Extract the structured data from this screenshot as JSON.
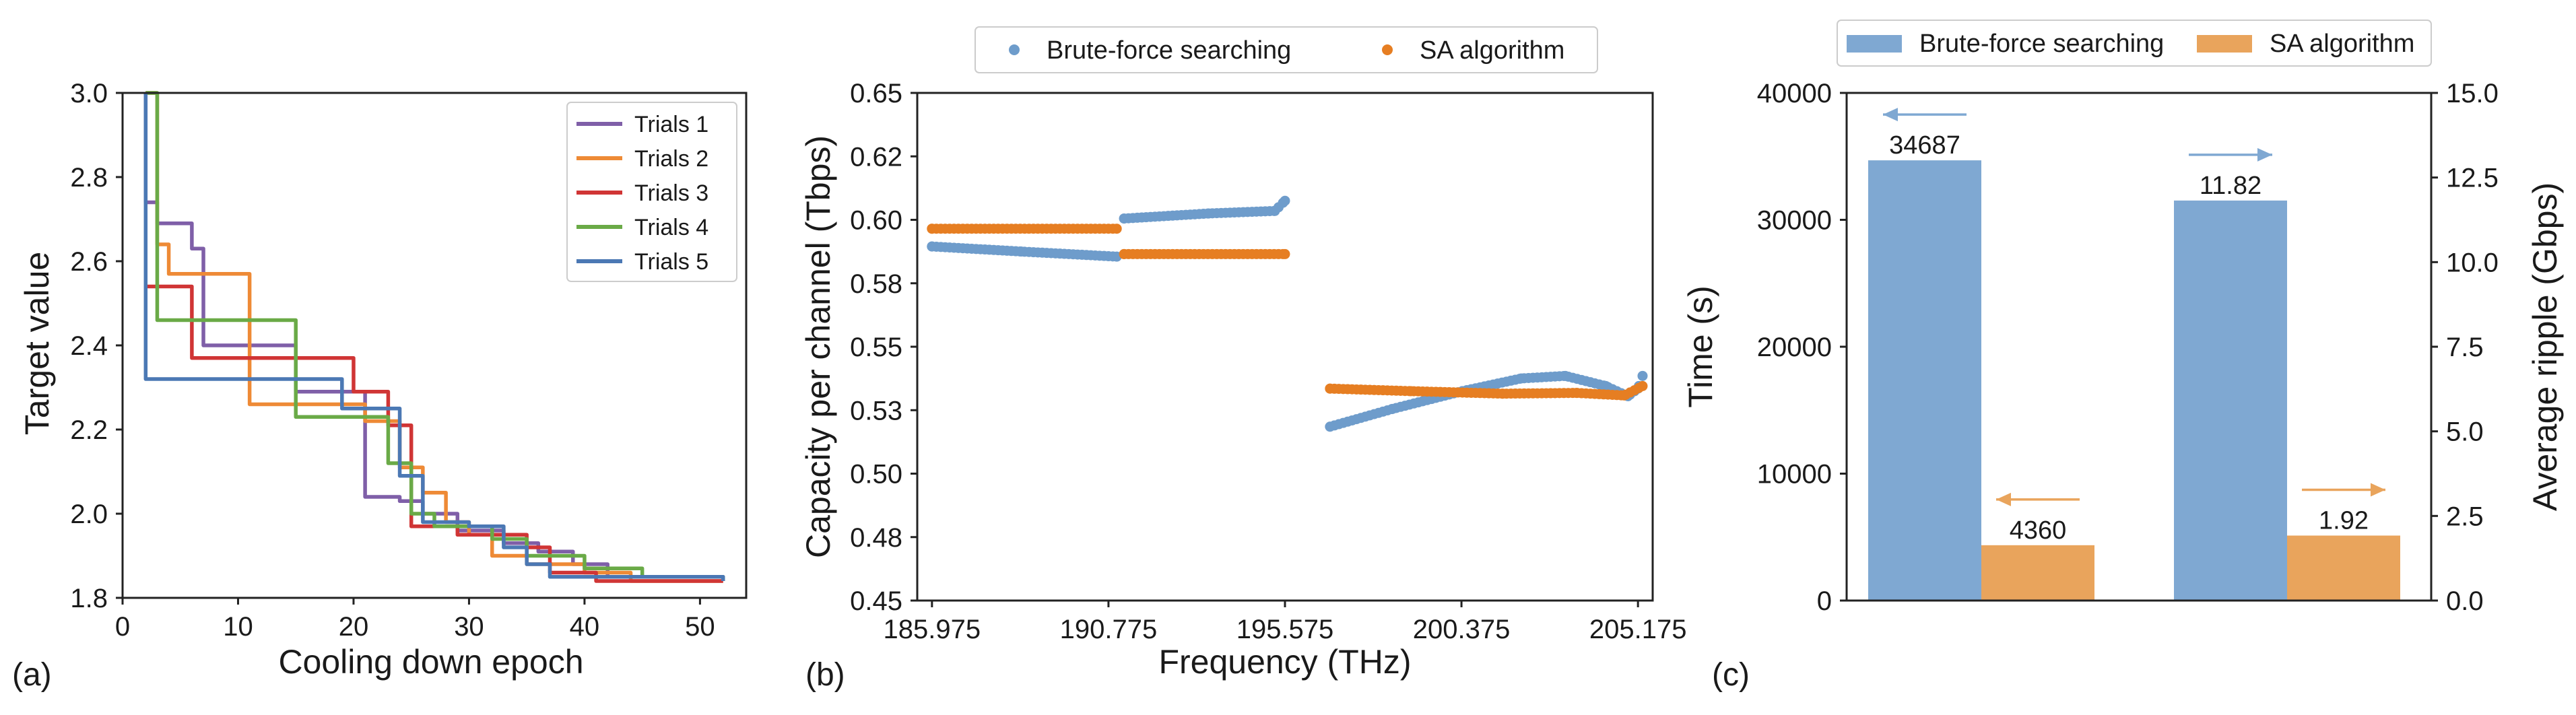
{
  "chart_data": [
    {
      "type": "line",
      "panel_label": "(a)",
      "xlabel": "Cooling down epoch",
      "ylabel": "Target value",
      "xlim": [
        0,
        54
      ],
      "ylim": [
        1.8,
        3.0
      ],
      "xticks": [
        0,
        10,
        20,
        30,
        40,
        50
      ],
      "yticks": [
        1.8,
        2.0,
        2.2,
        2.4,
        2.6,
        2.8,
        3.0
      ],
      "ytick_labels": [
        "1.8",
        "2.0",
        "2.2",
        "2.4",
        "2.6",
        "2.8",
        "3.0"
      ],
      "legend_position": "top-right",
      "grid": false,
      "series": [
        {
          "name": "Trials 1",
          "color": "#7f5fa8",
          "steps": [
            [
              2,
              3.0
            ],
            [
              2,
              2.74
            ],
            [
              3,
              2.69
            ],
            [
              6,
              2.63
            ],
            [
              7,
              2.4
            ],
            [
              14,
              2.4
            ],
            [
              15,
              2.29
            ],
            [
              20,
              2.29
            ],
            [
              21,
              2.04
            ],
            [
              24,
              2.03
            ],
            [
              26,
              2.0
            ],
            [
              29,
              1.96
            ],
            [
              33,
              1.93
            ],
            [
              36,
              1.91
            ],
            [
              39,
              1.88
            ],
            [
              42,
              1.85
            ],
            [
              52,
              1.84
            ]
          ]
        },
        {
          "name": "Trials 2",
          "color": "#ee8a36",
          "steps": [
            [
              2,
              3.0
            ],
            [
              3,
              2.64
            ],
            [
              4,
              2.57
            ],
            [
              10,
              2.57
            ],
            [
              11,
              2.26
            ],
            [
              19,
              2.26
            ],
            [
              21,
              2.22
            ],
            [
              24,
              2.11
            ],
            [
              26,
              2.05
            ],
            [
              28,
              1.98
            ],
            [
              30,
              1.95
            ],
            [
              32,
              1.9
            ],
            [
              35,
              1.88
            ],
            [
              40,
              1.86
            ],
            [
              44,
              1.84
            ],
            [
              52,
              1.84
            ]
          ]
        },
        {
          "name": "Trials 3",
          "color": "#d03535",
          "steps": [
            [
              2,
              2.54
            ],
            [
              4,
              2.54
            ],
            [
              6,
              2.37
            ],
            [
              19,
              2.37
            ],
            [
              20,
              2.29
            ],
            [
              22,
              2.29
            ],
            [
              23,
              2.21
            ],
            [
              24,
              2.21
            ],
            [
              25,
              1.97
            ],
            [
              28,
              1.97
            ],
            [
              29,
              1.95
            ],
            [
              35,
              1.92
            ],
            [
              37,
              1.86
            ],
            [
              41,
              1.84
            ],
            [
              52,
              1.84
            ]
          ]
        },
        {
          "name": "Trials 4",
          "color": "#6aaa47",
          "steps": [
            [
              2,
              3.0
            ],
            [
              3,
              2.46
            ],
            [
              14,
              2.46
            ],
            [
              15,
              2.23
            ],
            [
              22,
              2.23
            ],
            [
              23,
              2.12
            ],
            [
              25,
              2.0
            ],
            [
              27,
              1.97
            ],
            [
              32,
              1.94
            ],
            [
              35,
              1.9
            ],
            [
              40,
              1.87
            ],
            [
              45,
              1.85
            ],
            [
              52,
              1.84
            ]
          ]
        },
        {
          "name": "Trials 5",
          "color": "#4b78b4",
          "steps": [
            [
              2,
              3.0
            ],
            [
              2,
              2.32
            ],
            [
              16,
              2.32
            ],
            [
              19,
              2.25
            ],
            [
              23,
              2.25
            ],
            [
              24,
              2.09
            ],
            [
              26,
              1.98
            ],
            [
              28,
              1.98
            ],
            [
              30,
              1.97
            ],
            [
              33,
              1.92
            ],
            [
              35,
              1.88
            ],
            [
              37,
              1.85
            ],
            [
              40,
              1.85
            ],
            [
              52,
              1.84
            ]
          ]
        }
      ]
    },
    {
      "type": "scatter",
      "panel_label": "(b)",
      "xlabel": "Frequency (THz)",
      "ylabel": "Capacity per channel (Tbps)",
      "xlim": [
        185.575,
        205.575
      ],
      "ylim": [
        0.45,
        0.65
      ],
      "xticks": [
        185.975,
        190.775,
        195.575,
        200.375,
        205.175
      ],
      "xtick_labels": [
        "185.975",
        "190.775",
        "195.575",
        "200.375",
        "205.175"
      ],
      "yticks": [
        0.45,
        0.475,
        0.5,
        0.525,
        0.55,
        0.575,
        0.6,
        0.625,
        0.65
      ],
      "ytick_labels": [
        "0.45",
        "0.48",
        "0.50",
        "0.53",
        "0.55",
        "0.58",
        "0.60",
        "0.62",
        "0.65"
      ],
      "legend_position": "top-center",
      "grid": false,
      "series": [
        {
          "name": "Brute-force searching",
          "color": "#6e9ccb",
          "segments": [
            [
              [
                185.975,
                0.5895
              ],
              [
                188.4,
                0.5875
              ],
              [
                191.0,
                0.5855
              ]
            ],
            [
              [
                191.2,
                0.6005
              ],
              [
                193.5,
                0.6025
              ],
              [
                195.3,
                0.6035
              ],
              [
                195.575,
                0.6075
              ]
            ],
            [
              [
                196.8,
                0.5185
              ],
              [
                198.5,
                0.5255
              ],
              [
                200.4,
                0.5325
              ],
              [
                202.0,
                0.5375
              ],
              [
                203.2,
                0.5385
              ],
              [
                204.3,
                0.5345
              ],
              [
                204.9,
                0.5305
              ],
              [
                205.175,
                0.5335
              ],
              [
                205.3,
                0.5385
              ]
            ]
          ]
        },
        {
          "name": "SA algorithm",
          "color": "#e67e22",
          "segments": [
            [
              [
                185.975,
                0.5965
              ],
              [
                191.0,
                0.5965
              ]
            ],
            [
              [
                191.2,
                0.5865
              ],
              [
                195.575,
                0.5865
              ]
            ],
            [
              [
                196.8,
                0.5335
              ],
              [
                199.0,
                0.5325
              ],
              [
                201.5,
                0.5315
              ],
              [
                203.5,
                0.5318
              ],
              [
                204.8,
                0.5308
              ],
              [
                205.3,
                0.5345
              ]
            ]
          ]
        }
      ]
    },
    {
      "type": "bar",
      "panel_label": "(c)",
      "ylabel": "Time (s)",
      "ylabel_right": "Average ripple (Gbps)",
      "ylim": [
        0,
        40000
      ],
      "ylim_right": [
        0,
        15
      ],
      "yticks": [
        0,
        10000,
        20000,
        30000,
        40000
      ],
      "yticks_right": [
        0.0,
        2.5,
        5.0,
        7.5,
        10.0,
        12.5,
        15.0
      ],
      "ytick_labels_right": [
        "0.0",
        "2.5",
        "5.0",
        "7.5",
        "10.0",
        "12.5",
        "15.0"
      ],
      "legend_position": "top-center",
      "grid": false,
      "series": [
        {
          "name": "Brute-force searching",
          "color": "#7fa8d2"
        },
        {
          "name": "SA algorithm",
          "color": "#e9a45c"
        }
      ],
      "bars": [
        {
          "series": "Brute-force searching",
          "axis": "left",
          "value": 34687,
          "label": "34687",
          "arrow": "left"
        },
        {
          "series": "SA algorithm",
          "axis": "left",
          "value": 4360,
          "label": "4360",
          "arrow": "left"
        },
        {
          "series": "Brute-force searching",
          "axis": "right",
          "value": 11.82,
          "label": "11.82",
          "arrow": "right"
        },
        {
          "series": "SA algorithm",
          "axis": "right",
          "value": 1.92,
          "label": "1.92",
          "arrow": "right"
        }
      ]
    }
  ]
}
